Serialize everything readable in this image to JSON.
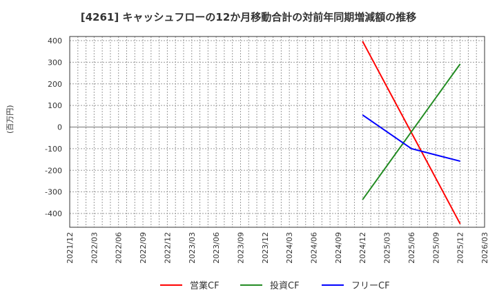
{
  "chart_data": {
    "type": "line",
    "title": "[4261]  キャッシュフローの12か月移動合計の対前年同期増減額の推移",
    "xlabel": "",
    "ylabel": "(百万円)",
    "ylim": [
      -430,
      420
    ],
    "yticks": [
      400,
      300,
      200,
      100,
      0,
      -100,
      -200,
      -300,
      -400
    ],
    "xticks": [
      "2021/12",
      "2022/03",
      "2022/06",
      "2022/09",
      "2022/12",
      "2023/03",
      "2023/06",
      "2023/09",
      "2023/12",
      "2024/03",
      "2024/06",
      "2024/09",
      "2024/12",
      "2025/03",
      "2025/06",
      "2025/09",
      "2025/12",
      "2026/03"
    ],
    "grid": true,
    "legend_position": "bottom",
    "x": [
      "2024/12",
      "2025/06",
      "2025/12"
    ],
    "series": [
      {
        "name": "営業CF",
        "color": "#ff0000",
        "values": [
          397,
          null,
          -448
        ]
      },
      {
        "name": "投資CF",
        "color": "#228b22",
        "values": [
          -336,
          null,
          292
        ]
      },
      {
        "name": "フリーCF",
        "color": "#0000ff",
        "values": [
          56,
          -100,
          -158
        ]
      }
    ]
  },
  "legend": [
    {
      "label": "営業CF",
      "color": "#ff0000"
    },
    {
      "label": "投資CF",
      "color": "#228b22"
    },
    {
      "label": "フリーCF",
      "color": "#0000ff"
    }
  ]
}
